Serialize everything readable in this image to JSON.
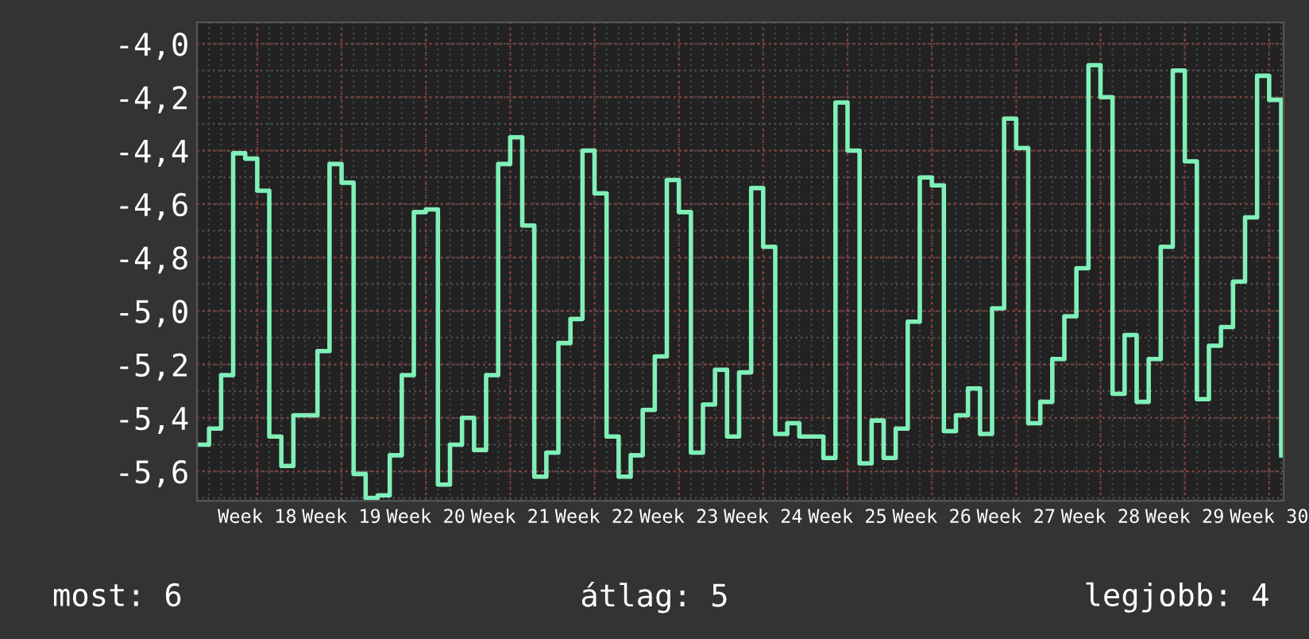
{
  "chart_data": {
    "type": "step",
    "categories": [
      null,
      null,
      null,
      null,
      null,
      "Week 18",
      null,
      null,
      null,
      null,
      null,
      null,
      "Week 19",
      null,
      null,
      null,
      null,
      null,
      null,
      "Week 20",
      null,
      null,
      null,
      null,
      null,
      null,
      "Week 21",
      null,
      null,
      null,
      null,
      null,
      null,
      "Week 22",
      null,
      null,
      null,
      null,
      null,
      null,
      "Week 23",
      null,
      null,
      null,
      null,
      null,
      null,
      "Week 24",
      null,
      null,
      null,
      null,
      null,
      null,
      "Week 25",
      null,
      null,
      null,
      null,
      null,
      null,
      "Week 26",
      null,
      null,
      null,
      null,
      null,
      null,
      "Week 27",
      null,
      null,
      null,
      null,
      null,
      null,
      "Week 28",
      null,
      null,
      null,
      null,
      null,
      null,
      "Week 29",
      null,
      null,
      null,
      null,
      null,
      null,
      "Week 30",
      null
    ],
    "series": [
      {
        "color": "#80f0b8",
        "values": [
          -5.5,
          -5.44,
          -5.24,
          -4.41,
          -4.43,
          -4.55,
          -5.47,
          -5.58,
          -5.39,
          -5.39,
          -5.15,
          -4.45,
          -4.52,
          -5.61,
          -5.7,
          -5.69,
          -5.54,
          -5.24,
          -4.63,
          -4.62,
          -5.65,
          -5.5,
          -5.4,
          -5.52,
          -5.24,
          -4.45,
          -4.35,
          -4.68,
          -5.62,
          -5.53,
          -5.12,
          -5.03,
          -4.4,
          -4.56,
          -5.47,
          -5.62,
          -5.54,
          -5.37,
          -5.17,
          -4.51,
          -4.63,
          -5.53,
          -5.35,
          -5.22,
          -5.47,
          -5.23,
          -4.54,
          -4.76,
          -5.46,
          -5.42,
          -5.47,
          -5.47,
          -5.55,
          -4.22,
          -4.4,
          -5.57,
          -5.41,
          -5.55,
          -5.44,
          -5.04,
          -4.5,
          -4.53,
          -5.45,
          -5.39,
          -5.29,
          -5.46,
          -4.99,
          -4.28,
          -4.39,
          -5.42,
          -5.34,
          -5.18,
          -5.02,
          -4.84,
          -4.08,
          -4.2,
          -5.31,
          -5.09,
          -5.34,
          -5.18,
          -4.76,
          -4.1,
          -4.44,
          -5.33,
          -5.13,
          -5.06,
          -4.89,
          -4.65,
          -4.12,
          -4.21,
          -5.54
        ]
      }
    ],
    "ylim": [
      -5.71,
      -3.92
    ],
    "yticks": [
      {
        "value": -5.6,
        "label": "-5,6"
      },
      {
        "value": -5.4,
        "label": "-5,4"
      },
      {
        "value": -5.2,
        "label": "-5,2"
      },
      {
        "value": -5.0,
        "label": "-5,0"
      },
      {
        "value": -4.8,
        "label": "-4,8"
      },
      {
        "value": -4.6,
        "label": "-4,6"
      },
      {
        "value": -4.4,
        "label": "-4,4"
      },
      {
        "value": -4.2,
        "label": "-4,2"
      },
      {
        "value": -4.0,
        "label": "-4,0"
      }
    ],
    "grid": true,
    "annotations": [
      "most: 6",
      "átlag: 5",
      "legjobb: 4"
    ]
  }
}
